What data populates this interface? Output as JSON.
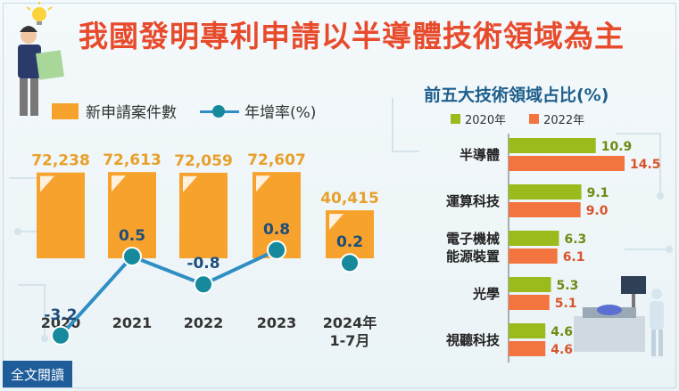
{
  "title": "我國發明專利申請以半導體技術領域為主",
  "left_legend": {
    "bar": "新申請案件數",
    "line": "年增率(%)"
  },
  "right_title": "前五大技術領域占比(%)",
  "right_legend": {
    "s2020": "2020年",
    "s2022": "2022年"
  },
  "read_button": "全文閱讀",
  "colors": {
    "bar_orange": "#f7a22c",
    "line_blue": "#2f8fc4",
    "dot_teal": "#168a9c",
    "green": "#9bbb1d",
    "salmon": "#f4743f",
    "value_orange": "#e8a02a",
    "title_red": "#e84a2c"
  },
  "chart_data": [
    {
      "type": "bar",
      "categories": [
        "2020",
        "2021",
        "2022",
        "2023",
        "2024年\n1-7月"
      ],
      "series": [
        {
          "name": "新申請案件數",
          "values": [
            72238,
            72613,
            72059,
            72607,
            40415
          ],
          "labels": [
            "72,238",
            "72,613",
            "72,059",
            "72,607",
            "40,415"
          ]
        },
        {
          "name": "年增率(%)",
          "type": "line",
          "values": [
            -3.2,
            0.5,
            -0.8,
            0.8,
            0.2
          ],
          "labels": [
            "-3.2",
            "0.5",
            "-0.8",
            "0.8",
            "0.2"
          ]
        }
      ]
    },
    {
      "type": "bar",
      "orientation": "horizontal",
      "title": "前五大技術領域占比(%)",
      "categories": [
        "半導體",
        "運算科技",
        "電子機械\n能源裝置",
        "光學",
        "視聽科技"
      ],
      "series": [
        {
          "name": "2020年",
          "values": [
            10.9,
            9.1,
            6.3,
            5.3,
            4.6
          ]
        },
        {
          "name": "2022年",
          "values": [
            14.5,
            9.0,
            6.1,
            5.1,
            4.6
          ]
        }
      ],
      "xlim": [
        0,
        14.5
      ]
    }
  ]
}
